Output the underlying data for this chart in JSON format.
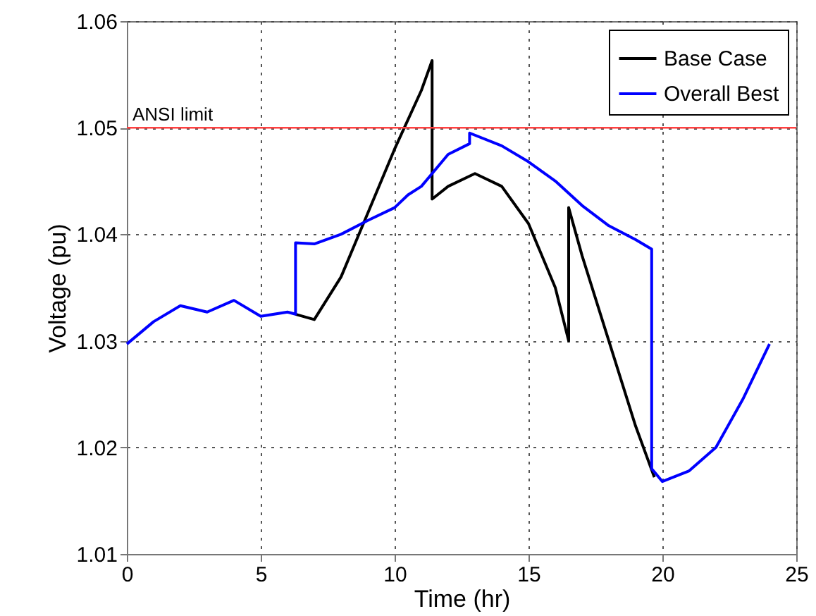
{
  "chart_data": {
    "type": "line",
    "xlabel": "Time (hr)",
    "ylabel": "Voltage (pu)",
    "xlim": [
      0,
      25
    ],
    "xticks": [
      0,
      5,
      10,
      15,
      20,
      25
    ],
    "ylim": [
      1.01,
      1.06
    ],
    "yticks": [
      1.01,
      1.02,
      1.03,
      1.04,
      1.05,
      1.06
    ],
    "grid": true,
    "legend": "top right",
    "line_style": "solid",
    "ref_lines": [
      {
        "axis": "y",
        "value": 1.05,
        "label": "ANSI limit",
        "color": "#ff4040"
      }
    ],
    "series": [
      {
        "name": "Base Case",
        "color": "#000000",
        "x": [
          6.3,
          7,
          8,
          9,
          10,
          11,
          11.4,
          11.4,
          12,
          13,
          14,
          15,
          16,
          16.5,
          16.5,
          17,
          18,
          19,
          19.7
        ],
        "values": [
          1.0325,
          1.032,
          1.036,
          1.042,
          1.048,
          1.0535,
          1.0563,
          1.0433,
          1.0445,
          1.0457,
          1.0445,
          1.041,
          1.035,
          1.03,
          1.0425,
          1.038,
          1.03,
          1.022,
          1.0172
        ]
      },
      {
        "name": "Overall Best",
        "color": "#0000ff",
        "x": [
          0,
          1,
          2,
          3,
          4,
          5,
          6,
          6.3,
          6.3,
          7,
          8,
          9,
          10,
          10.5,
          11,
          12,
          12.8,
          12.8,
          14,
          15,
          16,
          17,
          18,
          19,
          19.6,
          19.6,
          20,
          21,
          22,
          23,
          24
        ],
        "values": [
          1.0297,
          1.0318,
          1.0333,
          1.0327,
          1.0338,
          1.0323,
          1.0327,
          1.0325,
          1.0392,
          1.0391,
          1.04,
          1.0413,
          1.0425,
          1.0437,
          1.0445,
          1.0475,
          1.0485,
          1.0495,
          1.0483,
          1.0468,
          1.045,
          1.0427,
          1.0408,
          1.0395,
          1.0386,
          1.018,
          1.0168,
          1.0178,
          1.02,
          1.0245,
          1.0297
        ]
      }
    ]
  }
}
